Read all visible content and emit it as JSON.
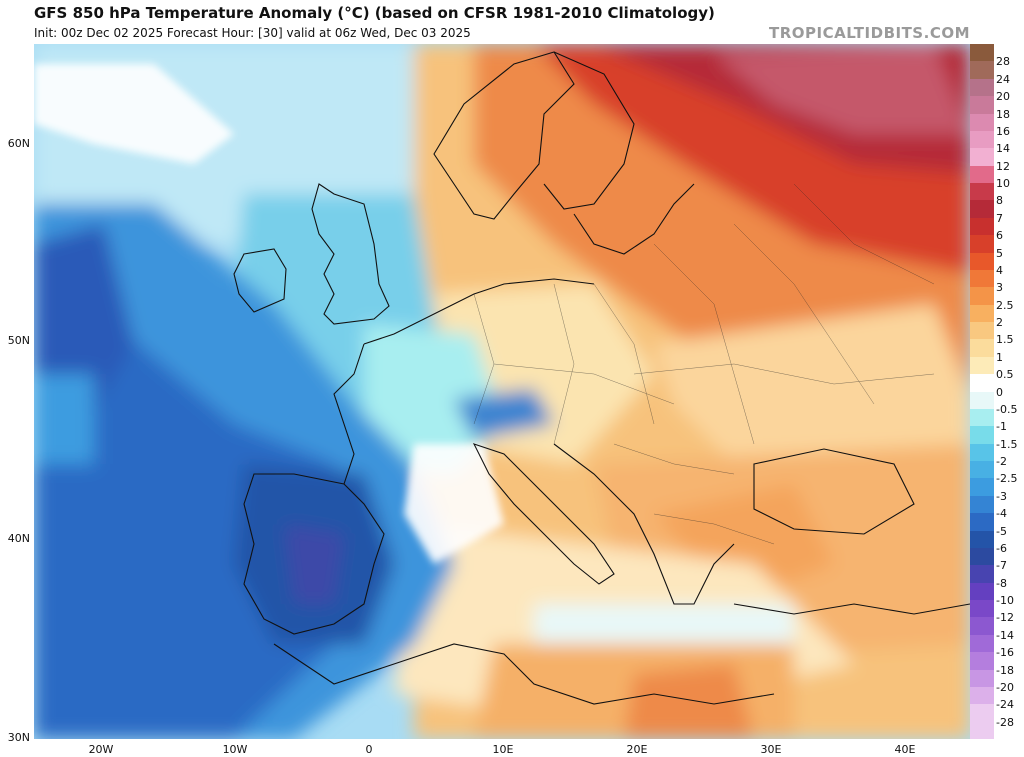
{
  "header": {
    "title": "GFS 850 hPa Temperature Anomaly (°C) (based on CFSR 1981-2010 Climatology)",
    "subtitle": "Init: 00z Dec 02 2025   Forecast Hour: [30]   valid at 06z Wed, Dec 03 2025",
    "brand": "TROPICALTIDBITS.COM"
  },
  "map": {
    "lat_labels": [
      "60N",
      "50N",
      "40N",
      "30N"
    ],
    "lon_labels": [
      "20W",
      "10W",
      "0",
      "10E",
      "20E",
      "30E",
      "40E"
    ]
  },
  "colorbar": {
    "labels": [
      "28",
      "24",
      "20",
      "18",
      "16",
      "14",
      "12",
      "10",
      "8",
      "7",
      "6",
      "5",
      "4",
      "3",
      "2.5",
      "2",
      "1.5",
      "1",
      "0.5",
      "0",
      "-0.5",
      "-1",
      "-1.5",
      "-2",
      "-2.5",
      "-3",
      "-4",
      "-5",
      "-6",
      "-7",
      "-8",
      "-10",
      "-12",
      "-14",
      "-16",
      "-18",
      "-20",
      "-24",
      "-28"
    ],
    "colors": [
      "#8a5a3c",
      "#a06a5a",
      "#b5728a",
      "#c97a9a",
      "#dc8ab0",
      "#e89cc2",
      "#f2b0d2",
      "#e26a8a",
      "#c83a4a",
      "#b52a38",
      "#c8302e",
      "#d8402a",
      "#e8582a",
      "#f07838",
      "#f49448",
      "#f8b060",
      "#f9c880",
      "#fbdc9c",
      "#fdebb8",
      "#ffffff",
      "#e8f8f8",
      "#a8eef0",
      "#78dcea",
      "#58c4e8",
      "#48b0e4",
      "#3c9ce0",
      "#3484d4",
      "#2c6ac4",
      "#2454a8",
      "#2c4aa0",
      "#4844b0",
      "#6440c0",
      "#7a48c8",
      "#8c58d0",
      "#a06ad8",
      "#b47ede",
      "#c896e4",
      "#dcb0ea",
      "#ecccf0"
    ]
  }
}
